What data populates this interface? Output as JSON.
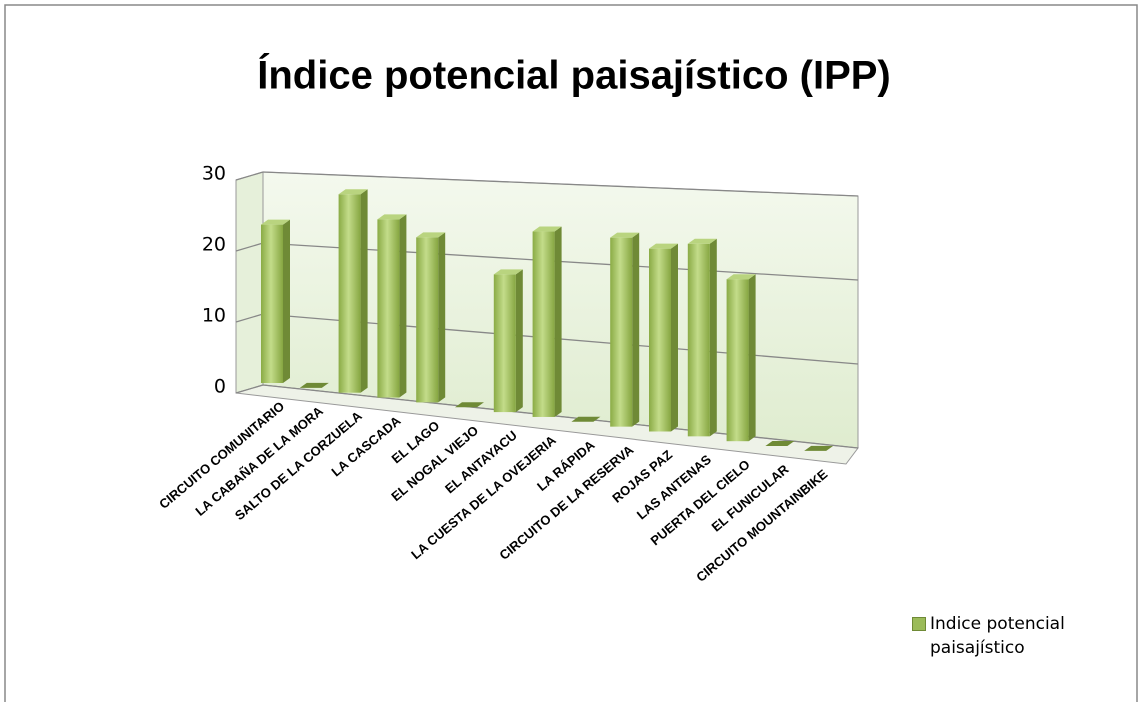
{
  "chart_data": {
    "type": "bar3d",
    "title": "Índice potencial paisajístico (IPP)",
    "categories": [
      "CIRCUITO COMUNITARIO",
      "LA CABAÑA DE LA MORA",
      "SALTO DE LA CORZUELA",
      "LA CASCADA",
      "EL LAGO",
      "EL NOGAL VIEJO",
      "EL ANTAYACU",
      "LA CUESTA DE LA OVEJERIA",
      "LA RÁPIDA",
      "CIRCUITO DE LA RESERVA",
      "ROJAS PAZ",
      "LAS ANTENAS",
      "PUERTA DEL CIELO",
      "EL FUNICULAR",
      "CIRCUITO MOUNTAINBIKE"
    ],
    "series": [
      {
        "name": "Indice potencial paisajístico",
        "color": "#9bbb59",
        "values": [
          22,
          0,
          27,
          24,
          22,
          0,
          18,
          24,
          0,
          24,
          23,
          24,
          20,
          0,
          0
        ]
      }
    ],
    "ylim": [
      0,
      30
    ],
    "yticks": [
      0,
      10,
      20,
      30
    ],
    "grid": true,
    "legend": "right"
  }
}
